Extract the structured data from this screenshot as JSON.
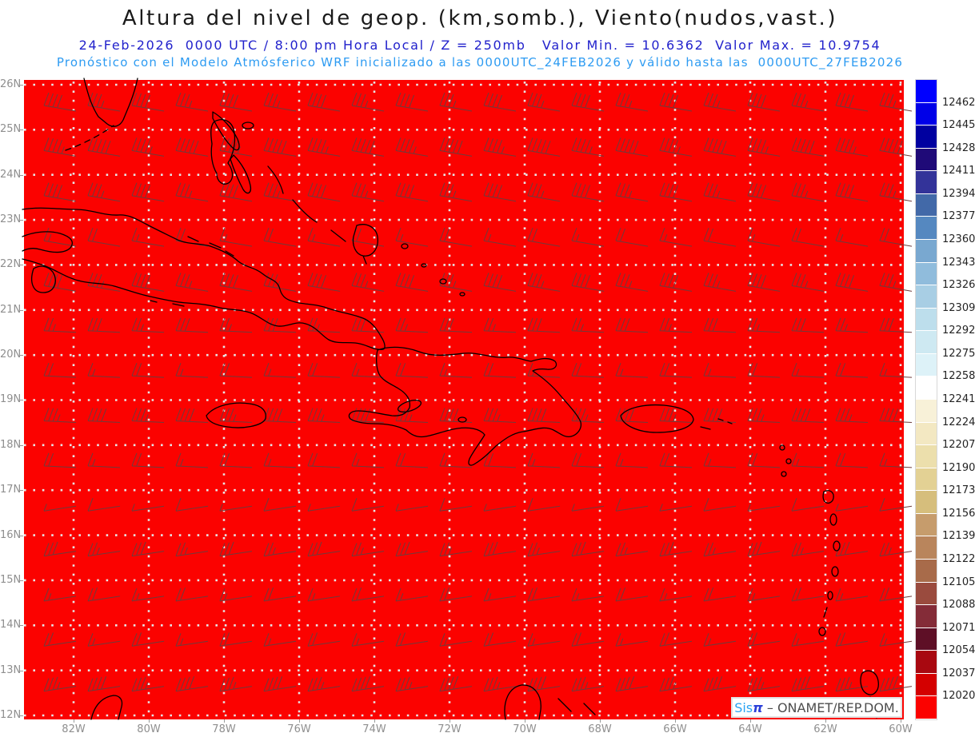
{
  "header": {
    "title": "Altura del nivel de geop. (km,somb.), Viento(nudos,vast.)",
    "forecast_line": "24-Feb-2026  0000 UTC / 8:00 pm Hora Local / Z = 250mb   Valor Min. = 10.6362  Valor Max. = 10.9754",
    "model_line": "Pronóstico con el Modelo Atmósferico WRF inicializado a las 0000UTC_24FEB2026 y válido hasta las  0000UTC_27FEB2026"
  },
  "branding": {
    "sis": "Sis",
    "pi": "π",
    "org": " – ONAMET/REP.DOM."
  },
  "colors": {
    "field_red": "#FB0200",
    "coastline": "#000000",
    "wind_barb": "#6E3C3C",
    "grid_dot": "#E6E6E6",
    "axis_label": "#8F8F8F",
    "title_black": "#1A1A1A",
    "forecast_blue": "#2222CC",
    "model_blue": "#2D9BF2"
  },
  "chart_data": {
    "type": "heatmap",
    "title": "Altura del nivel de geop. (km,somb.), Viento(nudos,vast.)",
    "field": {
      "variable": "Altura del nivel de geopotencial",
      "units": "km (sombreado)",
      "level": "250mb",
      "valid": "24-Feb-2026 0000 UTC / 8:00 pm Hora Local",
      "valor_min": 10.6362,
      "valor_max": 10.9754,
      "rendering": "uniform red shading — entire field below colorbar minimum"
    },
    "wind": {
      "variable": "Viento",
      "units": "nudos",
      "rendering": "wind barbs, westerly flow, stronger toward the north"
    },
    "x_axis": {
      "ticks": [
        "82W",
        "80W",
        "78W",
        "76W",
        "74W",
        "72W",
        "70W",
        "68W",
        "66W",
        "64W",
        "62W",
        "60W"
      ],
      "lon_range_west": [
        83.3,
        59.9
      ]
    },
    "y_axis": {
      "ticks": [
        "26N",
        "25N",
        "24N",
        "23N",
        "22N",
        "21N",
        "20N",
        "19N",
        "18N",
        "17N",
        "16N",
        "15N",
        "14N",
        "13N",
        "12N"
      ],
      "lat_range": [
        12,
        26
      ]
    },
    "colorbar": {
      "tick_values_top_to_bottom": [
        12462,
        12445,
        12428,
        12411,
        12394,
        12377,
        12360,
        12343,
        12326,
        12309,
        12292,
        12275,
        12258,
        12241,
        12224,
        12207,
        12190,
        12173,
        12156,
        12139,
        12122,
        12105,
        12088,
        12071,
        12054,
        12037,
        12020
      ],
      "colors_top_to_bottom": [
        "#0000FF",
        "#0000E8",
        "#0000A0",
        "#1F0A78",
        "#333399",
        "#4269A8",
        "#5588C0",
        "#79A8D0",
        "#90BCDC",
        "#A8CEE4",
        "#BDDEEC",
        "#CEE9F2",
        "#DDF2F8",
        "#FFFFFF",
        "#F8F1D8",
        "#F3E8C2",
        "#ECDFAC",
        "#E3D194",
        "#D6BE7C",
        "#C69C6C",
        "#B9855C",
        "#A86B4A",
        "#9A4B3E",
        "#842C38",
        "#5E0F26",
        "#A80810",
        "#D40000",
        "#FB0200"
      ],
      "legend_position": "right"
    },
    "grid": "dotted, 1° latitude × 2° longitude"
  }
}
